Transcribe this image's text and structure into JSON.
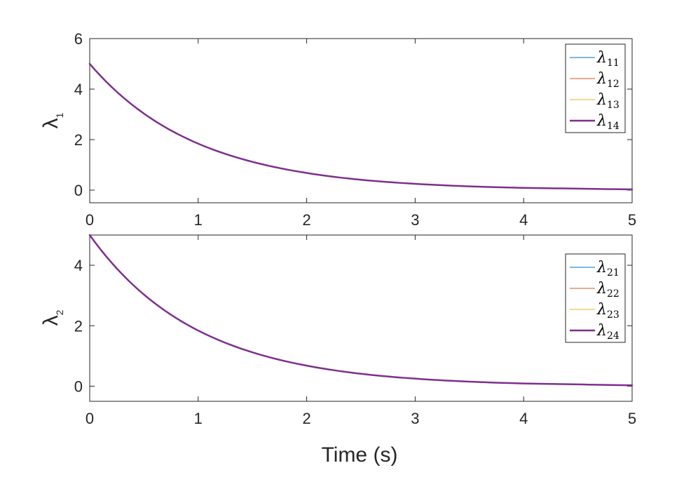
{
  "chart_data": [
    {
      "type": "line",
      "ylabel": "λ",
      "ylabel_sub": "1",
      "xlabel": "",
      "xlim": [
        0,
        5
      ],
      "ylim": [
        -0.5,
        6
      ],
      "xticks": [
        0,
        1,
        2,
        3,
        4,
        5
      ],
      "yticks": [
        0,
        2,
        4,
        6
      ],
      "grid": false,
      "legend_position": "top-right",
      "x": [
        0,
        0.5,
        1,
        1.5,
        2,
        2.5,
        3,
        3.5,
        4,
        4.5,
        5
      ],
      "series": [
        {
          "name": "λ",
          "sub": "11",
          "color": "#0072BD",
          "width": 1,
          "values": [
            5,
            3.03,
            1.84,
            1.12,
            0.68,
            0.41,
            0.25,
            0.15,
            0.09,
            0.06,
            0.03
          ]
        },
        {
          "name": "λ",
          "sub": "12",
          "color": "#D95319",
          "width": 1,
          "values": [
            5,
            3.03,
            1.84,
            1.12,
            0.68,
            0.41,
            0.25,
            0.15,
            0.09,
            0.06,
            0.03
          ]
        },
        {
          "name": "λ",
          "sub": "13",
          "color": "#EDB120",
          "width": 1,
          "values": [
            5,
            3.03,
            1.84,
            1.12,
            0.68,
            0.41,
            0.25,
            0.15,
            0.09,
            0.06,
            0.03
          ]
        },
        {
          "name": "λ",
          "sub": "14",
          "color": "#7E2F8E",
          "width": 2.5,
          "values": [
            5,
            3.03,
            1.84,
            1.12,
            0.68,
            0.41,
            0.25,
            0.15,
            0.09,
            0.06,
            0.03
          ]
        }
      ]
    },
    {
      "type": "line",
      "ylabel": "λ",
      "ylabel_sub": "2",
      "xlabel": "Time (s)",
      "xlim": [
        0,
        5
      ],
      "ylim": [
        -0.5,
        5
      ],
      "xticks": [
        0,
        1,
        2,
        3,
        4,
        5
      ],
      "yticks": [
        0,
        2,
        4
      ],
      "grid": false,
      "legend_position": "top-right",
      "x": [
        0,
        0.5,
        1,
        1.5,
        2,
        2.5,
        3,
        3.5,
        4,
        4.5,
        5
      ],
      "series": [
        {
          "name": "λ",
          "sub": "21",
          "color": "#0072BD",
          "width": 1,
          "values": [
            5,
            3.03,
            1.84,
            1.12,
            0.68,
            0.41,
            0.25,
            0.15,
            0.09,
            0.06,
            0.03
          ]
        },
        {
          "name": "λ",
          "sub": "22",
          "color": "#D95319",
          "width": 1,
          "values": [
            5,
            3.03,
            1.84,
            1.12,
            0.68,
            0.41,
            0.25,
            0.15,
            0.09,
            0.06,
            0.03
          ]
        },
        {
          "name": "λ",
          "sub": "23",
          "color": "#EDB120",
          "width": 1,
          "values": [
            5,
            3.03,
            1.84,
            1.12,
            0.68,
            0.41,
            0.25,
            0.15,
            0.09,
            0.06,
            0.03
          ]
        },
        {
          "name": "λ",
          "sub": "24",
          "color": "#7E2F8E",
          "width": 2.5,
          "values": [
            5,
            3.03,
            1.84,
            1.12,
            0.68,
            0.41,
            0.25,
            0.15,
            0.09,
            0.06,
            0.03
          ]
        }
      ]
    }
  ]
}
